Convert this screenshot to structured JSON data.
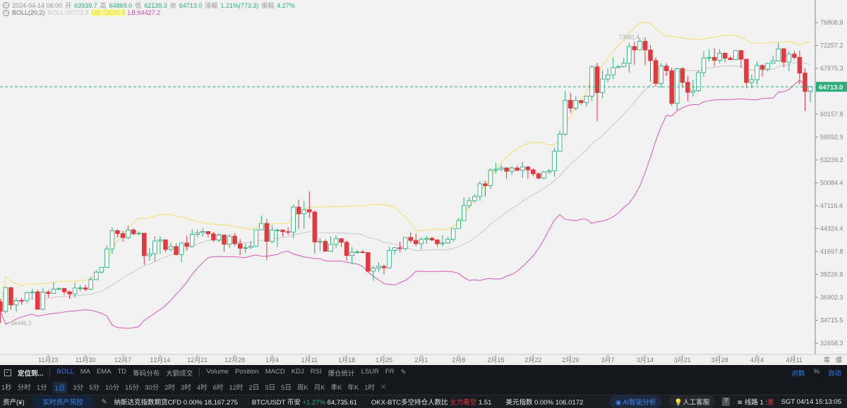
{
  "legend": {
    "datetime": "2024-04-14 08:00",
    "open_label": "开",
    "open": "63939.7",
    "high_label": "高",
    "high": "64869.0",
    "low_label": "低",
    "low": "62139.3",
    "close_label": "收",
    "close": "64713.0",
    "change_label": "涨幅",
    "change": "1.21%(773.3)",
    "amp_label": "振幅",
    "amp": "4.27%",
    "boll_name": "BOLL(20,2)",
    "boll": "BOLL:68723.8",
    "ub": "UB:73020.4",
    "lb": "LB:64427.2"
  },
  "colors": {
    "up": "#2bae7c",
    "down": "#e0393e",
    "mid": "#c8c8c8",
    "ub": "#eee06a",
    "lb": "#d858b8",
    "accent": "#2f7ce8"
  },
  "chart_data": {
    "type": "candlestick",
    "scale": "log",
    "ylim": [
      32000,
      78500
    ],
    "y_ticks": [
      "76808.8",
      "72257.2",
      "67975.3",
      "60157.8",
      "56592.9",
      "53239.3",
      "50084.4",
      "47116.4",
      "44324.4",
      "41697.8",
      "39226.8",
      "36902.3",
      "34715.5",
      "32658.3"
    ],
    "x_ticks": [
      [
        "2023-11-23",
        "11月23"
      ],
      [
        "2023-11-30",
        "11月30"
      ],
      [
        "2023-12-07",
        "12月7"
      ],
      [
        "2023-12-14",
        "12月14"
      ],
      [
        "2023-12-21",
        "12月21"
      ],
      [
        "2023-12-28",
        "12月28"
      ],
      [
        "2024-01-04",
        "1月4"
      ],
      [
        "2024-01-11",
        "1月11"
      ],
      [
        "2024-01-18",
        "1月18"
      ],
      [
        "2024-01-25",
        "1月25"
      ],
      [
        "2024-02-01",
        "2月1"
      ],
      [
        "2024-02-08",
        "2月8"
      ],
      [
        "2024-02-15",
        "2月15"
      ],
      [
        "2024-02-22",
        "2月22"
      ],
      [
        "2024-02-29",
        "2月29"
      ],
      [
        "2024-03-07",
        "3月7"
      ],
      [
        "2024-03-14",
        "3月14"
      ],
      [
        "2024-03-21",
        "3月21"
      ],
      [
        "2024-03-28",
        "3月28"
      ],
      [
        "2024-04-04",
        "4月4"
      ],
      [
        "2024-04-11",
        "4月11"
      ]
    ],
    "last_price": "64713.0",
    "high_marker": "73881.4",
    "low_marker": "34446.3",
    "indicator": "BOLL(20,2)",
    "candles": [
      [
        "2023-11-14",
        36480,
        36750,
        34450,
        35550
      ],
      [
        "2023-11-15",
        35550,
        37980,
        35360,
        37880
      ],
      [
        "2023-11-16",
        37880,
        37930,
        35680,
        36160
      ],
      [
        "2023-11-17",
        36160,
        36850,
        35510,
        36590
      ],
      [
        "2023-11-18",
        36590,
        36850,
        36200,
        36580
      ],
      [
        "2023-11-19",
        36580,
        37500,
        36380,
        37360
      ],
      [
        "2023-11-20",
        37360,
        37750,
        36700,
        37450
      ],
      [
        "2023-11-21",
        37450,
        37650,
        35750,
        35750
      ],
      [
        "2023-11-22",
        35750,
        37850,
        35650,
        37420
      ],
      [
        "2023-11-23",
        37420,
        37650,
        36870,
        37290
      ],
      [
        "2023-11-24",
        37290,
        38420,
        37250,
        37720
      ],
      [
        "2023-11-25",
        37720,
        37890,
        37600,
        37800
      ],
      [
        "2023-11-26",
        37800,
        37820,
        37150,
        37450
      ],
      [
        "2023-11-27",
        37450,
        37580,
        36750,
        37240
      ],
      [
        "2023-11-28",
        37240,
        38400,
        36870,
        37830
      ],
      [
        "2023-11-29",
        37830,
        38150,
        37500,
        37850
      ],
      [
        "2023-11-30",
        37850,
        38150,
        37500,
        37720
      ],
      [
        "2023-12-01",
        37720,
        38980,
        37620,
        38690
      ],
      [
        "2023-12-02",
        38690,
        39700,
        38650,
        39470
      ],
      [
        "2023-12-03",
        39470,
        40000,
        39300,
        39980
      ],
      [
        "2023-12-04",
        39980,
        42420,
        39980,
        41990
      ],
      [
        "2023-12-05",
        41990,
        44490,
        41420,
        44080
      ],
      [
        "2023-12-06",
        44080,
        44300,
        43330,
        43750
      ],
      [
        "2023-12-07",
        43750,
        44050,
        42820,
        43290
      ],
      [
        "2023-12-08",
        43290,
        44700,
        43080,
        44170
      ],
      [
        "2023-12-09",
        44170,
        44370,
        43580,
        43720
      ],
      [
        "2023-12-10",
        43720,
        44030,
        43560,
        43790
      ],
      [
        "2023-12-11",
        43790,
        43800,
        40220,
        41240
      ],
      [
        "2023-12-12",
        41240,
        42100,
        40680,
        41450
      ],
      [
        "2023-12-13",
        41450,
        43430,
        40600,
        42890
      ],
      [
        "2023-12-14",
        42890,
        43420,
        41420,
        43020
      ],
      [
        "2023-12-15",
        43020,
        43090,
        41660,
        41940
      ],
      [
        "2023-12-16",
        41940,
        42720,
        41720,
        42260
      ],
      [
        "2023-12-17",
        42260,
        42590,
        41260,
        41370
      ],
      [
        "2023-12-18",
        41370,
        42760,
        40530,
        42660
      ],
      [
        "2023-12-19",
        42660,
        43490,
        41800,
        42270
      ],
      [
        "2023-12-20",
        42270,
        44300,
        42180,
        43660
      ],
      [
        "2023-12-21",
        43660,
        44240,
        43300,
        43860
      ],
      [
        "2023-12-22",
        43860,
        44400,
        43400,
        43990
      ],
      [
        "2023-12-23",
        43990,
        44020,
        43300,
        43720
      ],
      [
        "2023-12-24",
        43720,
        43940,
        42800,
        43010
      ],
      [
        "2023-12-25",
        43010,
        43800,
        42760,
        43580
      ],
      [
        "2023-12-26",
        43580,
        43600,
        41670,
        42510
      ],
      [
        "2023-12-27",
        42510,
        43680,
        42100,
        43440
      ],
      [
        "2023-12-28",
        43440,
        43790,
        42320,
        42580
      ],
      [
        "2023-12-29",
        42580,
        43120,
        41300,
        42070
      ],
      [
        "2023-12-30",
        42070,
        42600,
        41520,
        42140
      ],
      [
        "2023-12-31",
        42140,
        42900,
        41960,
        42280
      ],
      [
        "2024-01-01",
        42280,
        44180,
        42180,
        44180
      ],
      [
        "2024-01-02",
        44180,
        45880,
        44150,
        44950
      ],
      [
        "2024-01-03",
        44950,
        45500,
        40750,
        42850
      ],
      [
        "2024-01-04",
        42850,
        44730,
        42630,
        44150
      ],
      [
        "2024-01-05",
        44150,
        44340,
        42200,
        44160
      ],
      [
        "2024-01-06",
        44160,
        44230,
        43400,
        43970
      ],
      [
        "2024-01-07",
        43970,
        44500,
        43580,
        43930
      ],
      [
        "2024-01-08",
        43930,
        47250,
        43180,
        46950
      ],
      [
        "2024-01-09",
        46950,
        47900,
        44300,
        46110
      ],
      [
        "2024-01-10",
        46110,
        47700,
        44300,
        46630
      ],
      [
        "2024-01-11",
        46630,
        48970,
        45600,
        46340
      ],
      [
        "2024-01-12",
        46340,
        46500,
        41500,
        42780
      ],
      [
        "2024-01-13",
        42780,
        43260,
        41720,
        42840
      ],
      [
        "2024-01-14",
        42840,
        43080,
        41720,
        41730
      ],
      [
        "2024-01-15",
        41730,
        43400,
        41700,
        42500
      ],
      [
        "2024-01-16",
        42500,
        43570,
        42050,
        43150
      ],
      [
        "2024-01-17",
        43150,
        43200,
        42200,
        42740
      ],
      [
        "2024-01-18",
        42740,
        42930,
        40680,
        41260
      ],
      [
        "2024-01-19",
        41260,
        42190,
        40280,
        41620
      ],
      [
        "2024-01-20",
        41620,
        41870,
        41450,
        41660
      ],
      [
        "2024-01-21",
        41660,
        41880,
        41500,
        41580
      ],
      [
        "2024-01-22",
        41580,
        41680,
        39430,
        39570
      ],
      [
        "2024-01-23",
        39570,
        40130,
        38560,
        39890
      ],
      [
        "2024-01-24",
        39890,
        40550,
        39500,
        40080
      ],
      [
        "2024-01-25",
        40080,
        40300,
        39250,
        39930
      ],
      [
        "2024-01-26",
        39930,
        42200,
        39820,
        41820
      ],
      [
        "2024-01-27",
        41820,
        42200,
        41400,
        42120
      ],
      [
        "2024-01-28",
        42120,
        42840,
        41620,
        42030
      ],
      [
        "2024-01-29",
        42030,
        43300,
        41800,
        43300
      ],
      [
        "2024-01-30",
        43300,
        43880,
        42680,
        42950
      ],
      [
        "2024-01-31",
        42950,
        43740,
        42280,
        42580
      ],
      [
        "2024-02-01",
        42580,
        43290,
        41880,
        43080
      ],
      [
        "2024-02-02",
        43080,
        43490,
        42570,
        43200
      ],
      [
        "2024-02-03",
        43200,
        43380,
        42880,
        43010
      ],
      [
        "2024-02-04",
        43010,
        43120,
        42220,
        42580
      ],
      [
        "2024-02-05",
        42580,
        43550,
        42260,
        42660
      ],
      [
        "2024-02-06",
        42660,
        43390,
        42560,
        43090
      ],
      [
        "2024-02-07",
        43090,
        44380,
        42790,
        44340
      ],
      [
        "2024-02-08",
        44340,
        45600,
        44330,
        45290
      ],
      [
        "2024-02-09",
        45290,
        48200,
        45240,
        47130
      ],
      [
        "2024-02-10",
        47130,
        48170,
        46800,
        47750
      ],
      [
        "2024-02-11",
        47750,
        48590,
        47560,
        48290
      ],
      [
        "2024-02-12",
        48290,
        50330,
        47710,
        49960
      ],
      [
        "2024-02-13",
        49960,
        50370,
        48300,
        49700
      ],
      [
        "2024-02-14",
        49700,
        52080,
        49250,
        51800
      ],
      [
        "2024-02-15",
        51800,
        52820,
        51330,
        51940
      ],
      [
        "2024-02-16",
        51940,
        52570,
        51620,
        52130
      ],
      [
        "2024-02-17",
        52130,
        52180,
        50630,
        51660
      ],
      [
        "2024-02-18",
        51660,
        52370,
        51170,
        52120
      ],
      [
        "2024-02-19",
        52120,
        52480,
        51680,
        51780
      ],
      [
        "2024-02-20",
        51780,
        52980,
        50760,
        52260
      ],
      [
        "2024-02-21",
        52260,
        52370,
        50620,
        51850
      ],
      [
        "2024-02-22",
        51850,
        52050,
        50930,
        51300
      ],
      [
        "2024-02-23",
        51300,
        51550,
        50530,
        50730
      ],
      [
        "2024-02-24",
        50730,
        51700,
        50580,
        51570
      ],
      [
        "2024-02-25",
        51570,
        51960,
        51280,
        51730
      ],
      [
        "2024-02-26",
        51730,
        54940,
        50900,
        54480
      ],
      [
        "2024-02-27",
        54480,
        57580,
        54450,
        57040
      ],
      [
        "2024-02-28",
        57040,
        64000,
        56690,
        62430
      ],
      [
        "2024-02-29",
        62430,
        63670,
        60360,
        61130
      ],
      [
        "2024-03-01",
        61130,
        63170,
        60800,
        62390
      ],
      [
        "2024-03-02",
        62390,
        62430,
        61700,
        62030
      ],
      [
        "2024-03-03",
        62030,
        63230,
        61320,
        63120
      ],
      [
        "2024-03-04",
        63120,
        68500,
        62300,
        68250
      ],
      [
        "2024-03-05",
        68250,
        69000,
        59000,
        63720
      ],
      [
        "2024-03-06",
        63720,
        67640,
        62800,
        66070
      ],
      [
        "2024-03-07",
        66070,
        68030,
        65500,
        66800
      ],
      [
        "2024-03-08",
        66800,
        69990,
        66080,
        68120
      ],
      [
        "2024-03-09",
        68120,
        68590,
        67980,
        68310
      ],
      [
        "2024-03-10",
        68310,
        69920,
        68110,
        68910
      ],
      [
        "2024-03-11",
        68910,
        72800,
        67190,
        72050
      ],
      [
        "2024-03-12",
        72050,
        73000,
        68620,
        71400
      ],
      [
        "2024-03-13",
        71400,
        73650,
        71340,
        73060
      ],
      [
        "2024-03-14",
        73060,
        73880,
        68550,
        71390
      ],
      [
        "2024-03-15",
        71390,
        72400,
        65600,
        69400
      ],
      [
        "2024-03-16",
        69400,
        70030,
        64780,
        65300
      ],
      [
        "2024-03-17",
        65300,
        68900,
        64500,
        68390
      ],
      [
        "2024-03-18",
        68390,
        68950,
        66600,
        67550
      ],
      [
        "2024-03-19",
        67550,
        68110,
        61500,
        61910
      ],
      [
        "2024-03-20",
        61910,
        68100,
        60780,
        67910
      ],
      [
        "2024-03-21",
        67910,
        68200,
        64580,
        65490
      ],
      [
        "2024-03-22",
        65490,
        66650,
        62260,
        63780
      ],
      [
        "2024-03-23",
        63780,
        65970,
        63050,
        64040
      ],
      [
        "2024-03-24",
        64040,
        67620,
        63800,
        67210
      ],
      [
        "2024-03-25",
        67210,
        71150,
        66380,
        69880
      ],
      [
        "2024-03-26",
        69880,
        71560,
        69280,
        69990
      ],
      [
        "2024-03-27",
        69990,
        71730,
        68380,
        69450
      ],
      [
        "2024-03-28",
        69450,
        71550,
        68900,
        70780
      ],
      [
        "2024-03-29",
        70780,
        70900,
        69100,
        69850
      ],
      [
        "2024-03-30",
        69850,
        70300,
        69500,
        69580
      ],
      [
        "2024-03-31",
        69580,
        71370,
        69560,
        71280
      ],
      [
        "2024-04-01",
        71280,
        71340,
        68100,
        69650
      ],
      [
        "2024-04-02",
        69650,
        69670,
        64500,
        65460
      ],
      [
        "2024-04-03",
        65460,
        66900,
        64490,
        65960
      ],
      [
        "2024-04-04",
        65960,
        69290,
        65080,
        68490
      ],
      [
        "2024-04-05",
        68490,
        68720,
        66500,
        67830
      ],
      [
        "2024-04-06",
        67830,
        69000,
        67440,
        68890
      ],
      [
        "2024-04-07",
        68890,
        70280,
        68780,
        69330
      ],
      [
        "2024-04-08",
        69330,
        72800,
        69250,
        71620
      ],
      [
        "2024-04-09",
        71620,
        71760,
        68200,
        69120
      ],
      [
        "2024-04-10",
        69120,
        71200,
        67500,
        70610
      ],
      [
        "2024-04-11",
        70610,
        71280,
        69570,
        70000
      ],
      [
        "2024-04-12",
        70000,
        71220,
        65090,
        67120
      ],
      [
        "2024-04-13",
        67120,
        67930,
        60660,
        63920
      ],
      [
        "2024-04-14",
        63940,
        64870,
        62140,
        64713
      ]
    ]
  },
  "axis_corner": [
    "筹",
    "爆"
  ],
  "toolbar": {
    "locate": "定位到...",
    "indicators_main": [
      "BOLL",
      "MA",
      "EMA",
      "TD",
      "筹码分布",
      "大额成交"
    ],
    "indicators_sub": [
      "Volume",
      "Position",
      "MACD",
      "KDJ",
      "RSI",
      "爆仓统计",
      "LSUR",
      "FR"
    ],
    "right": [
      "对数",
      "%",
      "自动"
    ],
    "intervals": [
      "1秒",
      "分时",
      "1分",
      "1日",
      "3分",
      "5分",
      "10分",
      "15分",
      "30分",
      "2时",
      "3时",
      "4时",
      "6时",
      "12时",
      "2日",
      "3日",
      "5日",
      "周K",
      "月K",
      "季K",
      "年K",
      "1时"
    ],
    "active_interval": "1日"
  },
  "status": {
    "assets": "资产(¥)",
    "risk_btn": "实时资产风控",
    "nasdaq_name": "纳斯达克指数期货CFD",
    "nasdaq_chg": "0.00%",
    "nasdaq_val": "18,167.275",
    "btc_name": "BTC/USDT 币安",
    "btc_chg": "+1.27%",
    "btc_val": "64,735.61",
    "okx_name": "OKX-BTC多空持仓人数比",
    "okx_sent": "主力看空",
    "okx_val": "1.51",
    "dxy_name": "美元指数",
    "dxy_chg": "0.00%",
    "dxy_val": "106.0172",
    "ai": "AI智能分析",
    "support": "人工客服",
    "line": "线路 1 :",
    "line_q": "差",
    "time": "SGT 04/14 15:13:05"
  }
}
